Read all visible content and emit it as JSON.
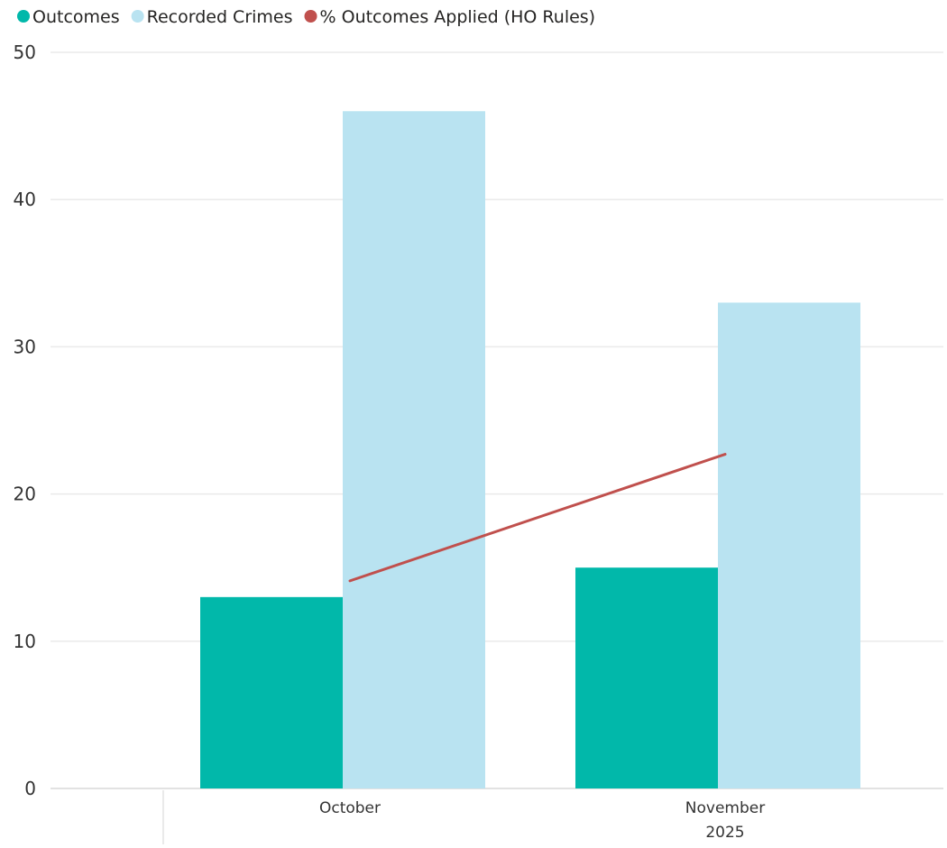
{
  "chart_data": {
    "type": "bar",
    "categories": [
      "October",
      "November"
    ],
    "x_group_label": "2025",
    "series": [
      {
        "name": "Outcomes",
        "type": "bar",
        "values": [
          13,
          15
        ],
        "color": "#01B8AA"
      },
      {
        "name": "Recorded Crimes",
        "type": "bar",
        "values": [
          46,
          33
        ],
        "color": "#B9E3F1"
      },
      {
        "name": "% Outcomes Applied (HO Rules)",
        "type": "line",
        "values": [
          14.1,
          22.7
        ],
        "color": "#C0504D"
      }
    ],
    "ylim": [
      0,
      50
    ],
    "yticks": [
      "0",
      "10",
      "20",
      "30",
      "40",
      "50"
    ],
    "grid": true,
    "legend_position": "top-left"
  }
}
